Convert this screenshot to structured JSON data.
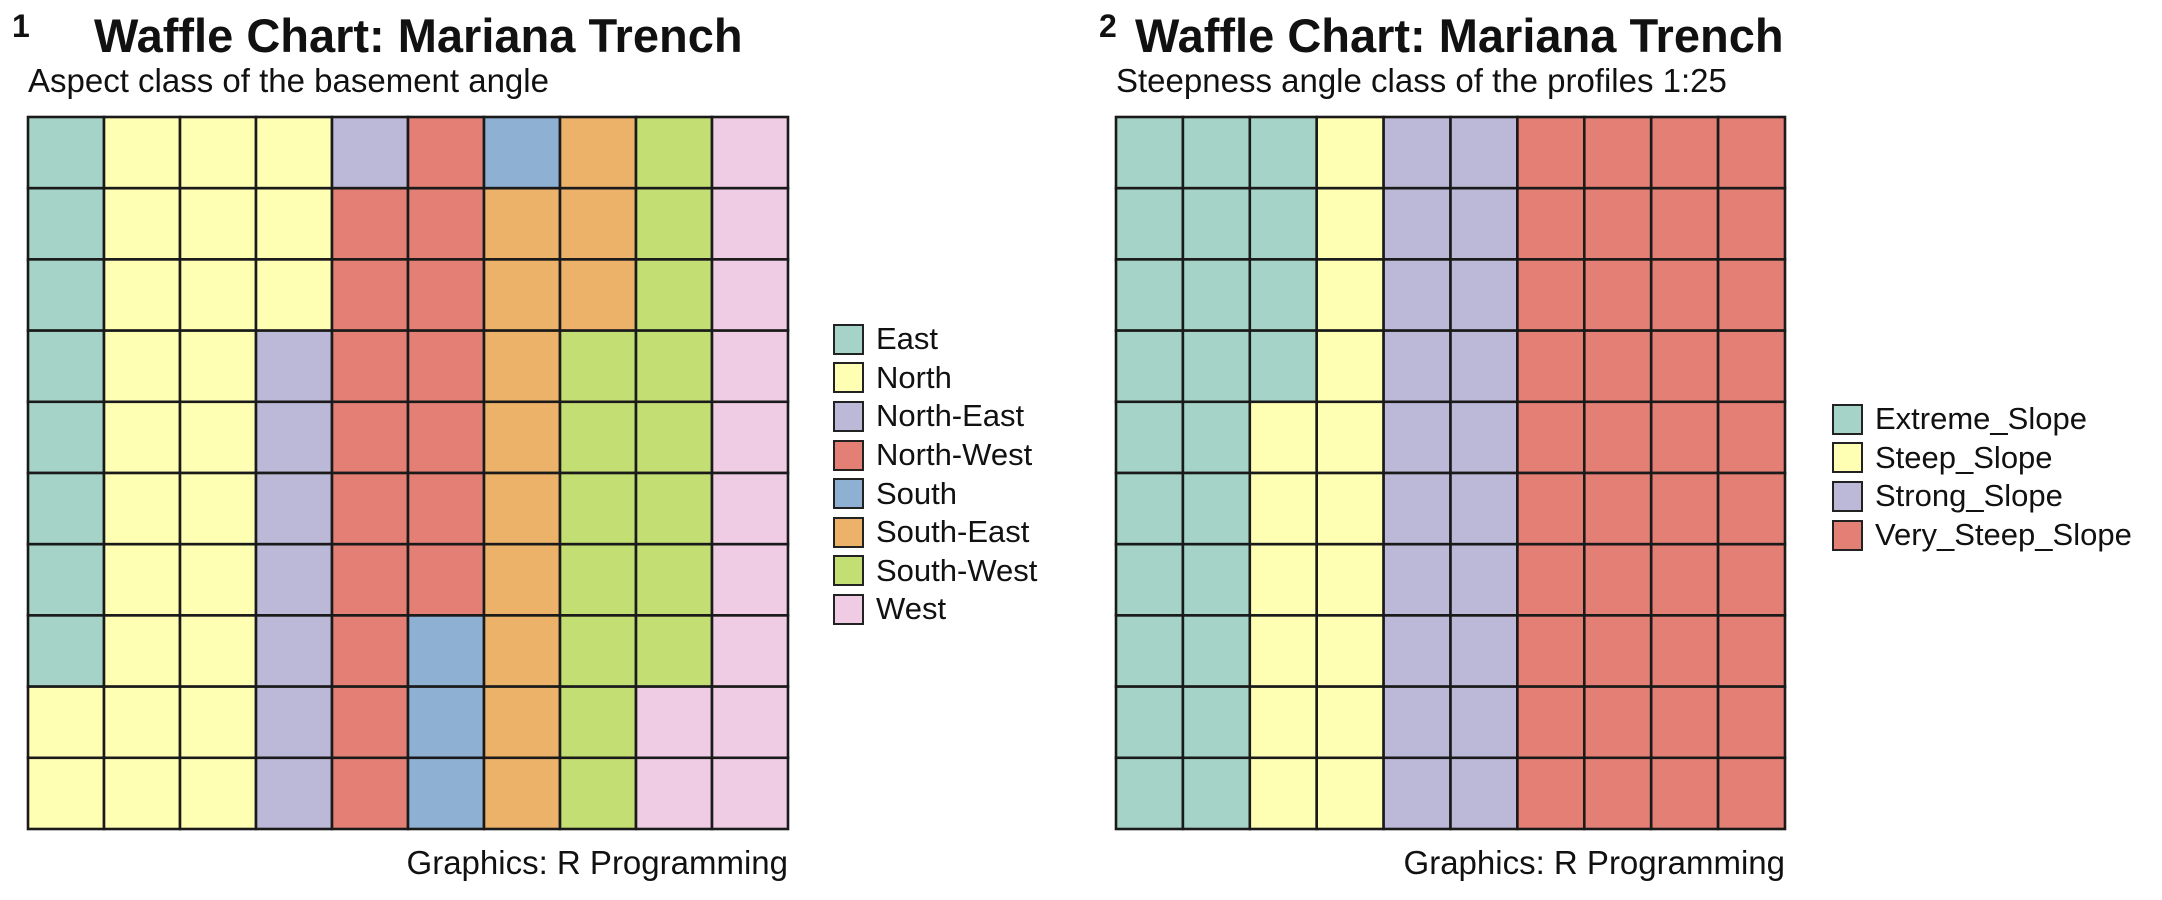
{
  "chart_data": [
    {
      "type": "waffle",
      "panel_tag": "1",
      "title": "Waffle Chart: Mariana Trench",
      "subtitle": "Aspect class of the basement angle",
      "caption": "Graphics: R Programming",
      "rows": 10,
      "cols": 10,
      "legend_position": "right",
      "categories": [
        {
          "name": "East",
          "count": 8,
          "color": "#A6D3C7"
        },
        {
          "name": "North",
          "count": 25,
          "color": "#FFFFB4"
        },
        {
          "name": "North-East",
          "count": 8,
          "color": "#BCB8D8"
        },
        {
          "name": "North-West",
          "count": 16,
          "color": "#E37F75"
        },
        {
          "name": "South",
          "count": 4,
          "color": "#8EB0D3"
        },
        {
          "name": "South-East",
          "count": 12,
          "color": "#EDB269"
        },
        {
          "name": "South-West",
          "count": 15,
          "color": "#C3DE73"
        },
        {
          "name": "West",
          "count": 12,
          "color": "#EFCBE4"
        }
      ]
    },
    {
      "type": "waffle",
      "panel_tag": "2",
      "title": "Waffle Chart: Mariana Trench",
      "subtitle": "Steepness angle class of the profiles 1:25",
      "caption": "Graphics: R Programming",
      "rows": 10,
      "cols": 10,
      "legend_position": "right",
      "categories": [
        {
          "name": "Extreme_Slope",
          "count": 24,
          "color": "#A6D3C7"
        },
        {
          "name": "Steep_Slope",
          "count": 16,
          "color": "#FFFFB4"
        },
        {
          "name": "Strong_Slope",
          "count": 20,
          "color": "#BCB8D8"
        },
        {
          "name": "Very_Steep_Slope",
          "count": 40,
          "color": "#E37F75"
        }
      ]
    }
  ]
}
